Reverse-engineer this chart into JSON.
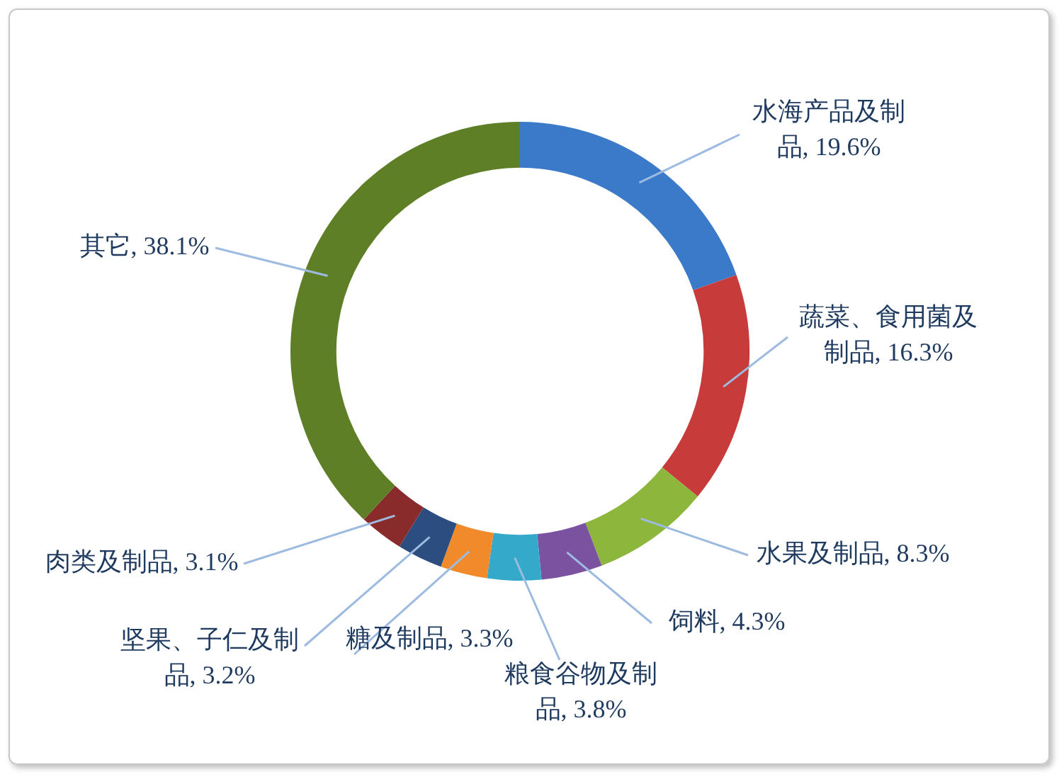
{
  "chart_data": {
    "type": "donut",
    "categories": [
      "水海产品及制品",
      "蔬菜、食用菌及制品",
      "水果及制品",
      "饲料",
      "粮食谷物及制品",
      "糖及制品",
      "坚果、子仁及制品",
      "肉类及制品",
      "其它"
    ],
    "values": [
      19.6,
      16.3,
      8.3,
      4.3,
      3.8,
      3.3,
      3.2,
      3.1,
      38.1
    ],
    "value_labels": [
      "19.6%",
      "16.3%",
      "8.3%",
      "4.3%",
      "3.8%",
      "3.3%",
      "3.2%",
      "3.1%",
      "38.1%"
    ],
    "colors": [
      "#3b79c9",
      "#c83b3b",
      "#8cb63c",
      "#7a52a0",
      "#34a9c9",
      "#f08a2b",
      "#2b4d80",
      "#8a2b2b",
      "#5e7f25"
    ],
    "legend": false
  }
}
